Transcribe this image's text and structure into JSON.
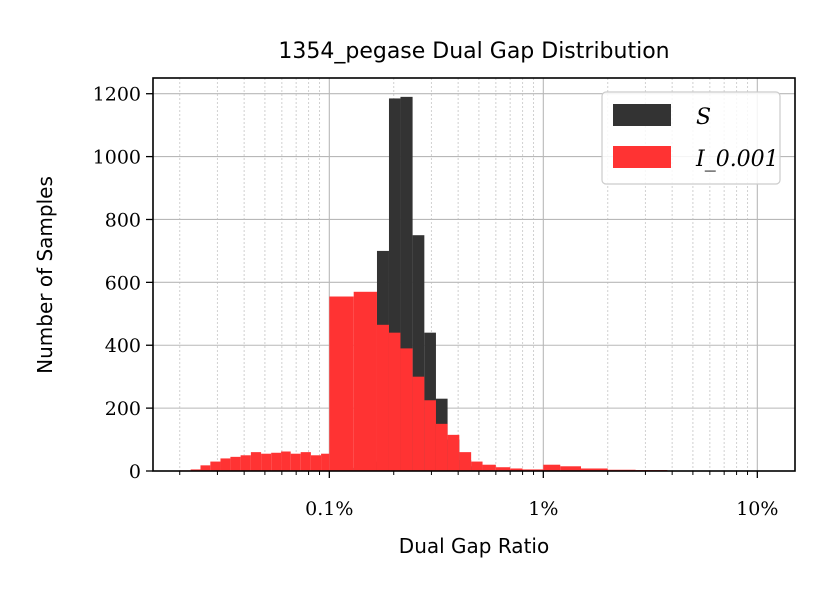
{
  "chart_data": {
    "type": "histogram",
    "title": "1354_pegase Dual Gap Distribution",
    "xlabel": "Dual Gap Ratio",
    "ylabel": "Number of Samples",
    "x_scale": "log",
    "x_units": "percent",
    "xlim": [
      0.015,
      15
    ],
    "ylim": [
      0,
      1250
    ],
    "x_ticks": [
      {
        "value": 0.1,
        "label": "0.1%"
      },
      {
        "value": 1,
        "label": "1%"
      },
      {
        "value": 10,
        "label": "10%"
      }
    ],
    "y_ticks": [
      {
        "value": 0,
        "label": "0"
      },
      {
        "value": 200,
        "label": "200"
      },
      {
        "value": 400,
        "label": "400"
      },
      {
        "value": 600,
        "label": "600"
      },
      {
        "value": 800,
        "label": "800"
      },
      {
        "value": 1000,
        "label": "1000"
      },
      {
        "value": 1200,
        "label": "1200"
      }
    ],
    "grid": true,
    "legend_position": "top-right",
    "series": [
      {
        "name": "S",
        "color": "#333333",
        "bins": [
          {
            "x0": 0.1,
            "x1": 0.115,
            "count": 0
          },
          {
            "x0": 0.115,
            "x1": 0.13,
            "count": 2
          },
          {
            "x0": 0.13,
            "x1": 0.148,
            "count": 10
          },
          {
            "x0": 0.148,
            "x1": 0.167,
            "count": 30
          },
          {
            "x0": 0.167,
            "x1": 0.19,
            "count": 700
          },
          {
            "x0": 0.19,
            "x1": 0.215,
            "count": 1185
          },
          {
            "x0": 0.215,
            "x1": 0.245,
            "count": 1190
          },
          {
            "x0": 0.245,
            "x1": 0.278,
            "count": 750
          },
          {
            "x0": 0.278,
            "x1": 0.315,
            "count": 440
          },
          {
            "x0": 0.315,
            "x1": 0.357,
            "count": 230
          },
          {
            "x0": 0.357,
            "x1": 0.405,
            "count": 100
          },
          {
            "x0": 0.405,
            "x1": 0.46,
            "count": 35
          },
          {
            "x0": 0.46,
            "x1": 0.52,
            "count": 15
          }
        ]
      },
      {
        "name": "I_0.001",
        "color": "#ff3333",
        "bins": [
          {
            "x0": 0.02,
            "x1": 0.0225,
            "count": 2
          },
          {
            "x0": 0.0225,
            "x1": 0.025,
            "count": 5
          },
          {
            "x0": 0.025,
            "x1": 0.0278,
            "count": 18
          },
          {
            "x0": 0.0278,
            "x1": 0.031,
            "count": 30
          },
          {
            "x0": 0.031,
            "x1": 0.0345,
            "count": 40
          },
          {
            "x0": 0.0345,
            "x1": 0.0385,
            "count": 45
          },
          {
            "x0": 0.0385,
            "x1": 0.043,
            "count": 50
          },
          {
            "x0": 0.043,
            "x1": 0.048,
            "count": 60
          },
          {
            "x0": 0.048,
            "x1": 0.0535,
            "count": 55
          },
          {
            "x0": 0.0535,
            "x1": 0.0595,
            "count": 58
          },
          {
            "x0": 0.0595,
            "x1": 0.066,
            "count": 62
          },
          {
            "x0": 0.066,
            "x1": 0.0735,
            "count": 55
          },
          {
            "x0": 0.0735,
            "x1": 0.082,
            "count": 60
          },
          {
            "x0": 0.082,
            "x1": 0.0915,
            "count": 50
          },
          {
            "x0": 0.0915,
            "x1": 0.1,
            "count": 55
          },
          {
            "x0": 0.1,
            "x1": 0.13,
            "count": 555
          },
          {
            "x0": 0.13,
            "x1": 0.167,
            "count": 570
          },
          {
            "x0": 0.167,
            "x1": 0.19,
            "count": 465
          },
          {
            "x0": 0.19,
            "x1": 0.215,
            "count": 440
          },
          {
            "x0": 0.215,
            "x1": 0.245,
            "count": 390
          },
          {
            "x0": 0.245,
            "x1": 0.278,
            "count": 300
          },
          {
            "x0": 0.278,
            "x1": 0.315,
            "count": 225
          },
          {
            "x0": 0.315,
            "x1": 0.357,
            "count": 150
          },
          {
            "x0": 0.357,
            "x1": 0.405,
            "count": 115
          },
          {
            "x0": 0.405,
            "x1": 0.46,
            "count": 60
          },
          {
            "x0": 0.46,
            "x1": 0.52,
            "count": 30
          },
          {
            "x0": 0.52,
            "x1": 0.6,
            "count": 20
          },
          {
            "x0": 0.6,
            "x1": 0.7,
            "count": 12
          },
          {
            "x0": 0.7,
            "x1": 0.8,
            "count": 8
          },
          {
            "x0": 0.8,
            "x1": 1.0,
            "count": 5
          },
          {
            "x0": 1.0,
            "x1": 1.2,
            "count": 20
          },
          {
            "x0": 1.2,
            "x1": 1.5,
            "count": 15
          },
          {
            "x0": 1.5,
            "x1": 2.0,
            "count": 8
          },
          {
            "x0": 2.0,
            "x1": 2.7,
            "count": 4
          },
          {
            "x0": 2.7,
            "x1": 3.8,
            "count": 3
          },
          {
            "x0": 3.8,
            "x1": 5.5,
            "count": 1
          }
        ]
      }
    ]
  }
}
